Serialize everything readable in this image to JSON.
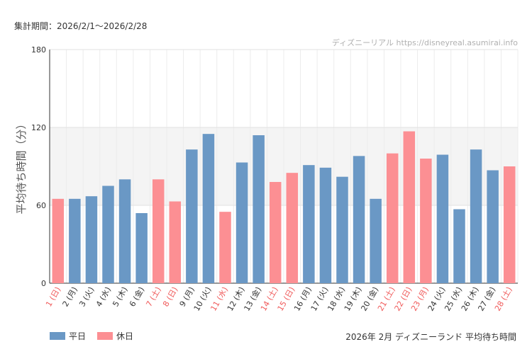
{
  "header": {
    "period": "集計期間：2026/2/1〜2026/2/28",
    "source": "ディズニーリアル https://disneyreal.asumirai.info"
  },
  "legend": {
    "weekday": "平日",
    "holiday": "休日"
  },
  "caption": "2026年 2月 ディズニーランド 平均待ち時間",
  "colors": {
    "weekday": "#6a98c5",
    "holiday": "#fc8f93",
    "holiday_label": "#f05a5a",
    "band": "#f4f4f4"
  },
  "chart_data": {
    "type": "bar",
    "ylabel": "平均待ち時間（分）",
    "ylim": [
      0,
      180
    ],
    "yticks": [
      0,
      60,
      120,
      180
    ],
    "shaded_band": [
      60,
      120
    ],
    "categories": [
      "1 (日)",
      "2 (月)",
      "3 (火)",
      "4 (水)",
      "5 (木)",
      "6 (金)",
      "7 (土)",
      "8 (日)",
      "9 (月)",
      "10 (火)",
      "11 (水)",
      "12 (木)",
      "13 (金)",
      "14 (土)",
      "15 (日)",
      "16 (月)",
      "17 (火)",
      "18 (水)",
      "19 (木)",
      "20 (金)",
      "21 (土)",
      "22 (日)",
      "23 (月)",
      "24 (火)",
      "25 (水)",
      "26 (木)",
      "27 (金)",
      "28 (土)"
    ],
    "values": [
      65,
      65,
      67,
      75,
      80,
      54,
      80,
      63,
      103,
      115,
      55,
      93,
      114,
      78,
      85,
      91,
      89,
      82,
      98,
      65,
      100,
      117,
      96,
      99,
      57,
      103,
      87,
      90
    ],
    "day_type": [
      "holiday",
      "weekday",
      "weekday",
      "weekday",
      "weekday",
      "weekday",
      "holiday",
      "holiday",
      "weekday",
      "weekday",
      "holiday",
      "weekday",
      "weekday",
      "holiday",
      "holiday",
      "weekday",
      "weekday",
      "weekday",
      "weekday",
      "weekday",
      "holiday",
      "holiday",
      "holiday",
      "weekday",
      "weekday",
      "weekday",
      "weekday",
      "holiday"
    ]
  }
}
